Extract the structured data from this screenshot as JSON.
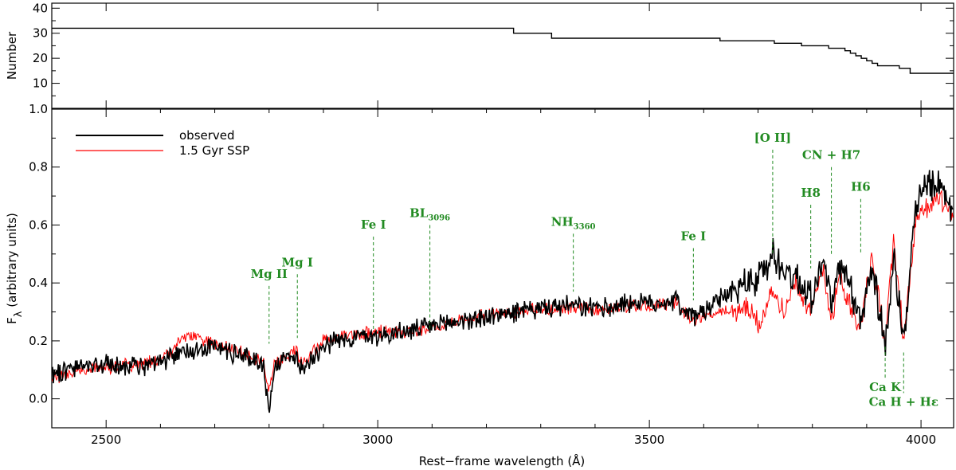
{
  "chart_data": [
    {
      "type": "line",
      "panel": "top",
      "title": "",
      "xlabel": "",
      "ylabel": "Number",
      "xlim": [
        2400,
        4060
      ],
      "ylim": [
        0,
        42
      ],
      "yticks": [
        10,
        20,
        30,
        40
      ],
      "step_x": [
        2400,
        3240,
        3250,
        3310,
        3320,
        3620,
        3630,
        3720,
        3730,
        3770,
        3780,
        3820,
        3830,
        3850,
        3860,
        3870,
        3880,
        3890,
        3900,
        3910,
        3920,
        3930,
        3960,
        3980,
        4060
      ],
      "step_y": [
        32,
        32,
        30,
        30,
        28,
        28,
        27,
        27,
        26,
        26,
        25,
        25,
        24,
        24,
        23,
        22,
        21,
        20,
        19,
        18,
        17,
        17,
        16,
        14,
        14
      ]
    },
    {
      "type": "line",
      "panel": "bottom",
      "title": "",
      "xlabel": "Rest−frame wavelength (Å)",
      "ylabel_main": "F",
      "ylabel_sub": "λ",
      "ylabel_tail": "(arbitrary units)",
      "xlim": [
        2400,
        4060
      ],
      "ylim": [
        -0.1,
        1.0
      ],
      "xticks": [
        2500,
        3000,
        3500,
        4000
      ],
      "yticks": [
        "0.0",
        "0.2",
        "0.4",
        "0.6",
        "0.8",
        "1.0"
      ],
      "legend_position": "top-left",
      "series": [
        {
          "name": "observed",
          "color": "#000000",
          "x": [
            2400,
            2450,
            2500,
            2550,
            2600,
            2650,
            2700,
            2750,
            2790,
            2800,
            2810,
            2850,
            2860,
            2900,
            2950,
            3000,
            3050,
            3100,
            3150,
            3200,
            3250,
            3300,
            3350,
            3400,
            3450,
            3500,
            3550,
            3580,
            3620,
            3650,
            3680,
            3700,
            3727,
            3750,
            3770,
            3797,
            3820,
            3835,
            3850,
            3870,
            3889,
            3910,
            3934,
            3950,
            3968,
            3990,
            4010,
            4030,
            4060
          ],
          "y": [
            0.09,
            0.11,
            0.12,
            0.11,
            0.12,
            0.17,
            0.18,
            0.15,
            0.12,
            -0.05,
            0.12,
            0.15,
            0.1,
            0.19,
            0.21,
            0.22,
            0.23,
            0.25,
            0.27,
            0.28,
            0.3,
            0.31,
            0.32,
            0.31,
            0.33,
            0.33,
            0.34,
            0.28,
            0.33,
            0.37,
            0.4,
            0.41,
            0.5,
            0.44,
            0.42,
            0.36,
            0.47,
            0.34,
            0.44,
            0.38,
            0.25,
            0.48,
            0.18,
            0.5,
            0.16,
            0.68,
            0.72,
            0.74,
            0.65
          ]
        },
        {
          "name": "1.5 Gyr SSP",
          "color": "#ff0000",
          "x": [
            2400,
            2450,
            2500,
            2550,
            2600,
            2650,
            2700,
            2750,
            2790,
            2800,
            2810,
            2850,
            2860,
            2900,
            2950,
            3000,
            3050,
            3100,
            3150,
            3200,
            3250,
            3300,
            3350,
            3400,
            3450,
            3500,
            3550,
            3580,
            3620,
            3650,
            3680,
            3700,
            3727,
            3750,
            3770,
            3797,
            3820,
            3835,
            3850,
            3870,
            3889,
            3910,
            3934,
            3950,
            3968,
            3990,
            4010,
            4030,
            4060
          ],
          "y": [
            0.07,
            0.1,
            0.11,
            0.12,
            0.13,
            0.22,
            0.19,
            0.16,
            0.12,
            0.03,
            0.12,
            0.17,
            0.12,
            0.2,
            0.22,
            0.23,
            0.23,
            0.25,
            0.27,
            0.29,
            0.3,
            0.31,
            0.31,
            0.31,
            0.32,
            0.32,
            0.33,
            0.27,
            0.3,
            0.3,
            0.31,
            0.26,
            0.36,
            0.3,
            0.42,
            0.29,
            0.46,
            0.27,
            0.43,
            0.32,
            0.26,
            0.49,
            0.2,
            0.55,
            0.2,
            0.62,
            0.66,
            0.7,
            0.63
          ]
        }
      ],
      "annotations": [
        {
          "label": "Mg II",
          "x": 2800,
          "y_line_top": 0.39,
          "y_line_bottom": 0.19
        },
        {
          "label": "Mg I",
          "x": 2852,
          "y_line_top": 0.43,
          "y_line_bottom": 0.21
        },
        {
          "label": "Fe I",
          "x": 2992,
          "y_line_top": 0.56,
          "y_line_bottom": 0.24
        },
        {
          "label": "BL",
          "sub": "3096",
          "x": 3096,
          "y_line_top": 0.6,
          "y_line_bottom": 0.24
        },
        {
          "label": "NH",
          "sub": "3360",
          "x": 3360,
          "y_line_top": 0.57,
          "y_line_bottom": 0.37
        },
        {
          "label": "Fe I",
          "x": 3581,
          "y_line_top": 0.52,
          "y_line_bottom": 0.34
        },
        {
          "label": "[O II]",
          "x": 3727,
          "y_line_top": 0.86,
          "y_line_bottom": 0.5
        },
        {
          "label": "H8",
          "x": 3797,
          "y_line_top": 0.67,
          "y_line_bottom": 0.45
        },
        {
          "label": "CN + H7",
          "x": 3835,
          "y_line_top": 0.8,
          "y_line_bottom": 0.5
        },
        {
          "label": "H6",
          "x": 3889,
          "y_line_top": 0.69,
          "y_line_bottom": 0.5
        },
        {
          "label": "Ca K",
          "x": 3934,
          "y_line_top": 0.18,
          "y_line_bottom": 0.07,
          "below": true
        },
        {
          "label": "Ca H + Hε",
          "x": 3968,
          "y_line_top": 0.16,
          "y_line_bottom": 0.02,
          "below": true
        }
      ]
    }
  ]
}
